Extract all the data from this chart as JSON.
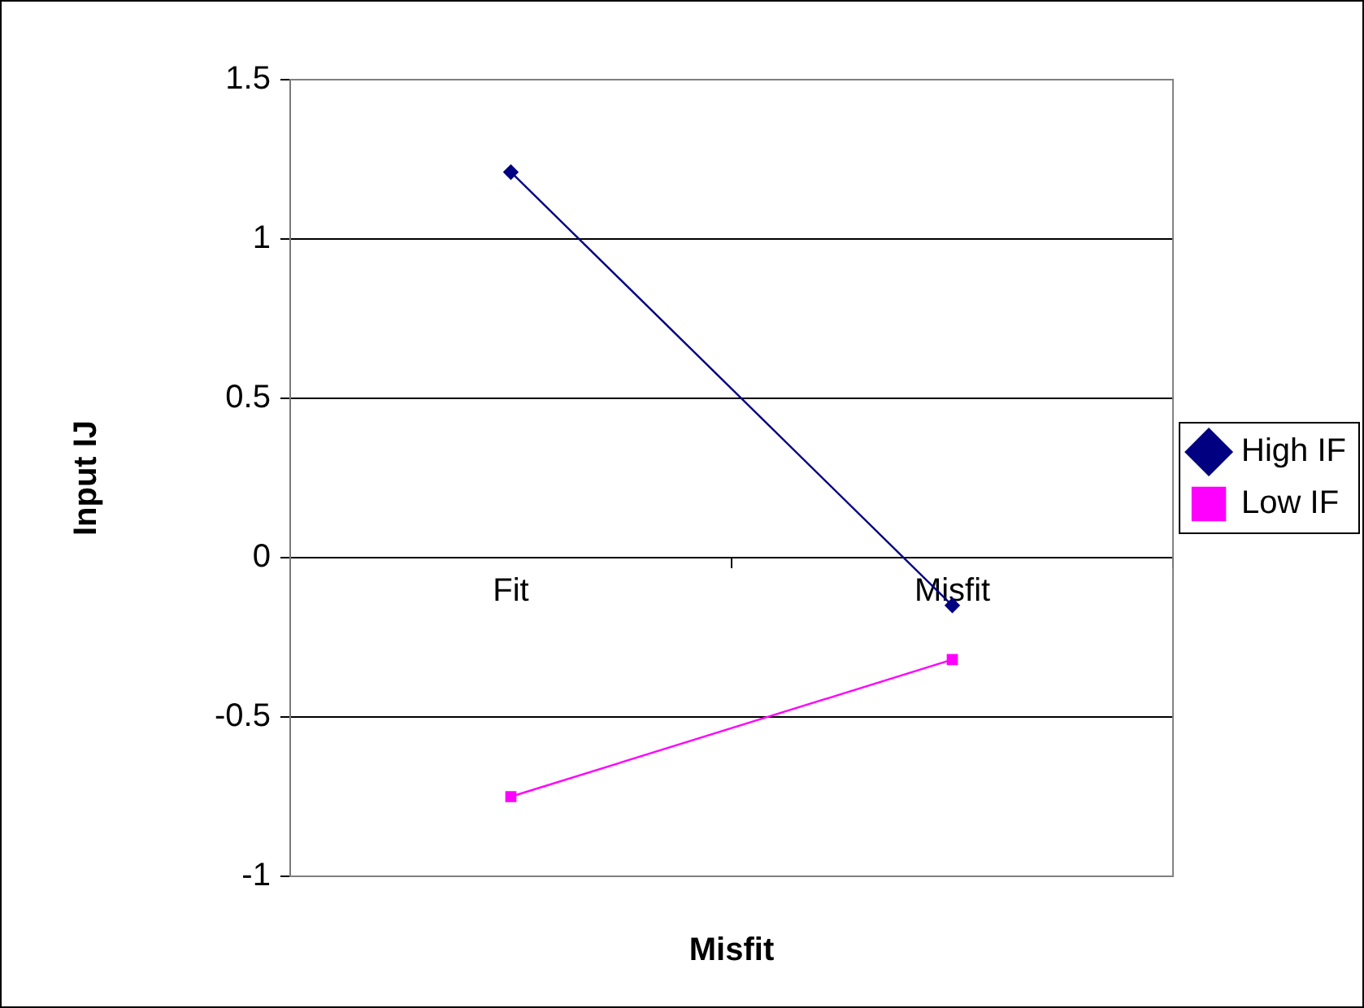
{
  "chart_data": {
    "type": "line",
    "xlabel": "Misfit",
    "ylabel": "Input IJ",
    "categories": [
      "Fit",
      "Misfit"
    ],
    "series": [
      {
        "name": "High IF",
        "color": "#000080",
        "values": [
          1.21,
          -0.15
        ],
        "marker": "diamond"
      },
      {
        "name": "Low IF",
        "color": "#ff00ff",
        "values": [
          -0.75,
          -0.32
        ],
        "marker": "square"
      }
    ],
    "ylim": [
      -1,
      1.5
    ],
    "yticks": [
      -1,
      -0.5,
      0,
      0.5,
      1,
      1.5
    ],
    "grid": "y",
    "legend": "right"
  }
}
